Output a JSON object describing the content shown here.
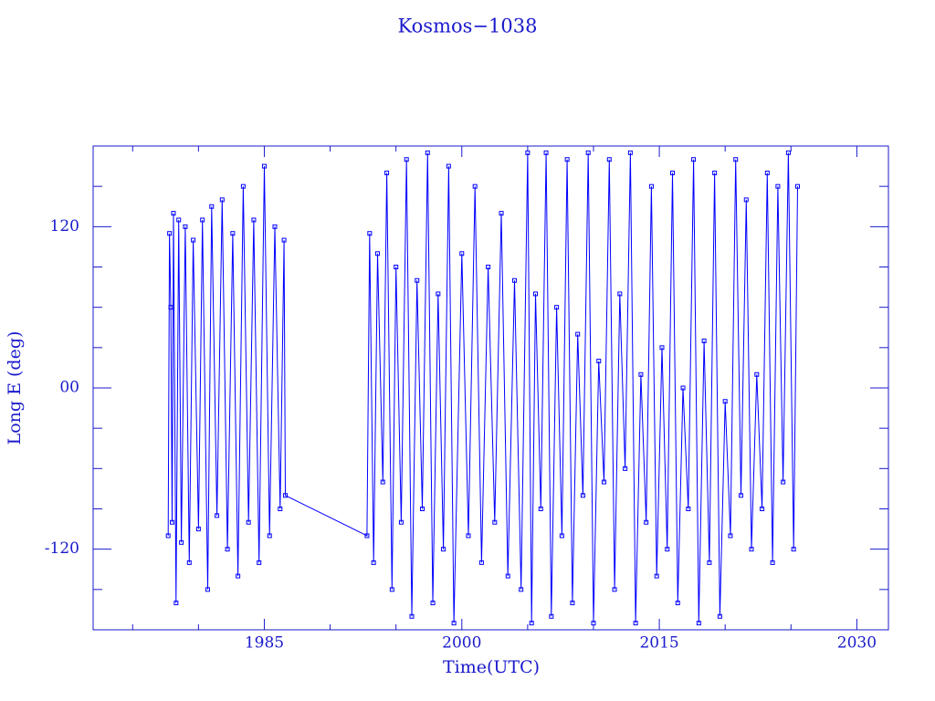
{
  "chart_data": {
    "type": "line",
    "title": "Kosmos−1038",
    "x_label": "Time(UTC)",
    "y_label": "Long E (deg)",
    "color": "#0000ff",
    "markers": true,
    "xlim": [
      1972,
      2032.4
    ],
    "ylim": [
      -180,
      180
    ],
    "xticks": [
      1985,
      2000,
      2015,
      2030
    ],
    "xminor_ticks": [
      1975,
      1980,
      1990,
      1995,
      2005,
      2010,
      2020,
      2025
    ],
    "yticks": [
      -120,
      {
        "value": 0,
        "label": "00"
      },
      120
    ],
    "yminor_ticks": [
      -150,
      -90,
      -60,
      -30,
      30,
      60,
      90,
      150
    ],
    "x": [
      1977.7,
      1977.8,
      1977.9,
      1978.0,
      1978.1,
      1978.3,
      1978.5,
      1978.7,
      1979.0,
      1979.3,
      1979.6,
      1980.0,
      1980.3,
      1980.7,
      1981.0,
      1981.4,
      1981.8,
      1982.2,
      1982.6,
      1983.0,
      1983.4,
      1983.8,
      1984.2,
      1984.6,
      1985.0,
      1985.4,
      1985.8,
      1986.2,
      1986.5,
      1986.6,
      1992.8,
      1993.0,
      1993.3,
      1993.6,
      1994.0,
      1994.3,
      1994.7,
      1995.0,
      1995.4,
      1995.8,
      1996.2,
      1996.6,
      1997.0,
      1997.4,
      1997.8,
      1998.2,
      1998.6,
      1999.0,
      1999.4,
      2000.0,
      2000.5,
      2001.0,
      2001.5,
      2002.0,
      2002.5,
      2003.0,
      2003.5,
      2004.0,
      2004.5,
      2005.0,
      2005.3,
      2005.6,
      2006.0,
      2006.4,
      2006.8,
      2007.2,
      2007.6,
      2008.0,
      2008.4,
      2008.8,
      2009.2,
      2009.6,
      2010.0,
      2010.4,
      2010.8,
      2011.2,
      2011.6,
      2012.0,
      2012.4,
      2012.8,
      2013.2,
      2013.6,
      2014.0,
      2014.4,
      2014.8,
      2015.2,
      2015.6,
      2016.0,
      2016.4,
      2016.8,
      2017.2,
      2017.6,
      2018.0,
      2018.4,
      2018.8,
      2019.2,
      2019.6,
      2020.0,
      2020.4,
      2020.8,
      2021.2,
      2021.6,
      2022.0,
      2022.4,
      2022.8,
      2023.2,
      2023.6,
      2024.0,
      2024.4,
      2024.8,
      2025.2,
      2025.5
    ],
    "values": [
      -110,
      115,
      60,
      -100,
      130,
      -160,
      125,
      -115,
      120,
      -130,
      110,
      -105,
      125,
      -150,
      135,
      -95,
      140,
      -120,
      115,
      -140,
      150,
      -100,
      125,
      -130,
      165,
      -110,
      120,
      -90,
      110,
      -80,
      -110,
      115,
      -130,
      100,
      -70,
      160,
      -150,
      90,
      -100,
      170,
      -170,
      80,
      -90,
      175,
      -160,
      70,
      -120,
      165,
      -175,
      100,
      -110,
      150,
      -130,
      90,
      -100,
      130,
      -140,
      80,
      -150,
      175,
      -175,
      70,
      -90,
      175,
      -170,
      60,
      -110,
      170,
      -160,
      40,
      -80,
      175,
      -175,
      20,
      -70,
      170,
      -150,
      70,
      -60,
      175,
      -175,
      10,
      -100,
      150,
      -140,
      30,
      -120,
      160,
      -160,
      0,
      -90,
      170,
      -175,
      35,
      -130,
      160,
      -170,
      -10,
      -110,
      170,
      -80,
      140,
      -120,
      10,
      -90,
      160,
      -130,
      150,
      -70,
      175,
      -120,
      150
    ]
  }
}
